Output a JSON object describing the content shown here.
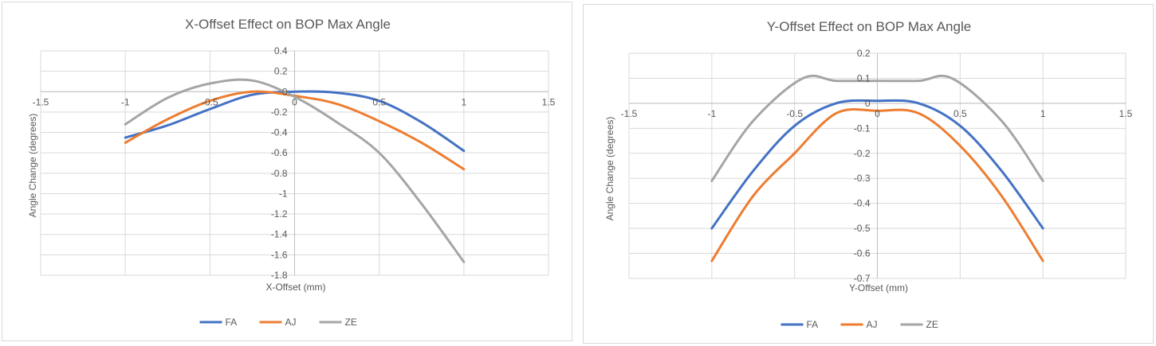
{
  "chart_data": [
    {
      "type": "line",
      "title": "X-Offset Effect on BOP Max Angle",
      "xlabel": "X-Offset (mm)",
      "ylabel": "Angle Change (degrees)",
      "xlim": [
        -1.5,
        1.5
      ],
      "ylim": [
        -1.8,
        0.4
      ],
      "xticks": [
        -1.5,
        -1,
        -0.5,
        0,
        0.5,
        1,
        1.5
      ],
      "xtick_labels": [
        "-1.5",
        "-1",
        "-0.5",
        "0",
        "0.5",
        "1",
        "1.5"
      ],
      "yticks": [
        0.4,
        0.2,
        0,
        -0.2,
        -0.4,
        -0.6,
        -0.8,
        -1,
        -1.2,
        -1.4,
        -1.6,
        -1.8
      ],
      "ytick_labels": [
        "0.4",
        "0.2",
        "0",
        "-0.2",
        "-0.4",
        "-0.6",
        "-0.8",
        "-1",
        "-1.2",
        "-1.4",
        "-1.6",
        "-1.8"
      ],
      "grid": true,
      "legend": "bottom-center",
      "series": [
        {
          "name": "FA",
          "color": "#4472c4",
          "x": [
            -1,
            -0.75,
            -0.5,
            -0.25,
            0,
            0.25,
            0.5,
            0.75,
            1
          ],
          "y": [
            -0.45,
            -0.33,
            -0.17,
            -0.03,
            0.0,
            -0.01,
            -0.09,
            -0.3,
            -0.58
          ]
        },
        {
          "name": "AJ",
          "color": "#ed7d31",
          "x": [
            -1,
            -0.75,
            -0.5,
            -0.25,
            0,
            0.25,
            0.5,
            0.75,
            1
          ],
          "y": [
            -0.5,
            -0.27,
            -0.09,
            0.0,
            -0.04,
            -0.12,
            -0.29,
            -0.5,
            -0.76
          ]
        },
        {
          "name": "ZE",
          "color": "#a5a5a5",
          "x": [
            -1,
            -0.75,
            -0.5,
            -0.25,
            0,
            0.25,
            0.5,
            0.75,
            1
          ],
          "y": [
            -0.32,
            -0.06,
            0.08,
            0.11,
            -0.05,
            -0.3,
            -0.6,
            -1.1,
            -1.67
          ]
        }
      ]
    },
    {
      "type": "line",
      "title": "Y-Offset Effect on BOP Max Angle",
      "xlabel": "Y-Offset (mm)",
      "ylabel": "Angle Change (degrees)",
      "xlim": [
        -1.5,
        1.5
      ],
      "ylim": [
        -0.7,
        0.2
      ],
      "xticks": [
        -1.5,
        -1,
        -0.5,
        0,
        0.5,
        1,
        1.5
      ],
      "xtick_labels": [
        "-1.5",
        "-1",
        "-0.5",
        "0",
        "0.5",
        "1",
        "1.5"
      ],
      "yticks": [
        0.2,
        0.1,
        0,
        -0.1,
        -0.2,
        -0.3,
        -0.4,
        -0.5,
        -0.6,
        -0.7
      ],
      "ytick_labels": [
        "0.2",
        "0.1",
        "0",
        "-0.1",
        "-0.2",
        "-0.3",
        "-0.4",
        "-0.5",
        "-0.6",
        "-0.7"
      ],
      "grid": true,
      "legend": "bottom-center",
      "series": [
        {
          "name": "FA",
          "color": "#4472c4",
          "x": [
            -1,
            -0.75,
            -0.5,
            -0.25,
            0,
            0.25,
            0.5,
            0.75,
            1
          ],
          "y": [
            -0.5,
            -0.27,
            -0.09,
            0.0,
            0.01,
            0.0,
            -0.09,
            -0.27,
            -0.5
          ]
        },
        {
          "name": "AJ",
          "color": "#ed7d31",
          "x": [
            -1,
            -0.75,
            -0.5,
            -0.5,
            -0.25,
            0,
            0.25,
            0.5,
            0.75,
            1
          ],
          "y": [
            -0.63,
            -0.37,
            -0.2,
            -0.2,
            -0.04,
            -0.03,
            -0.04,
            -0.17,
            -0.37,
            -0.63
          ]
        },
        {
          "name": "ZE",
          "color": "#a5a5a5",
          "x": [
            -1,
            -0.75,
            -0.45,
            -0.25,
            0,
            0.25,
            0.45,
            0.75,
            1
          ],
          "y": [
            -0.31,
            -0.07,
            0.1,
            0.09,
            0.09,
            0.09,
            0.1,
            -0.07,
            -0.31
          ]
        }
      ]
    }
  ]
}
